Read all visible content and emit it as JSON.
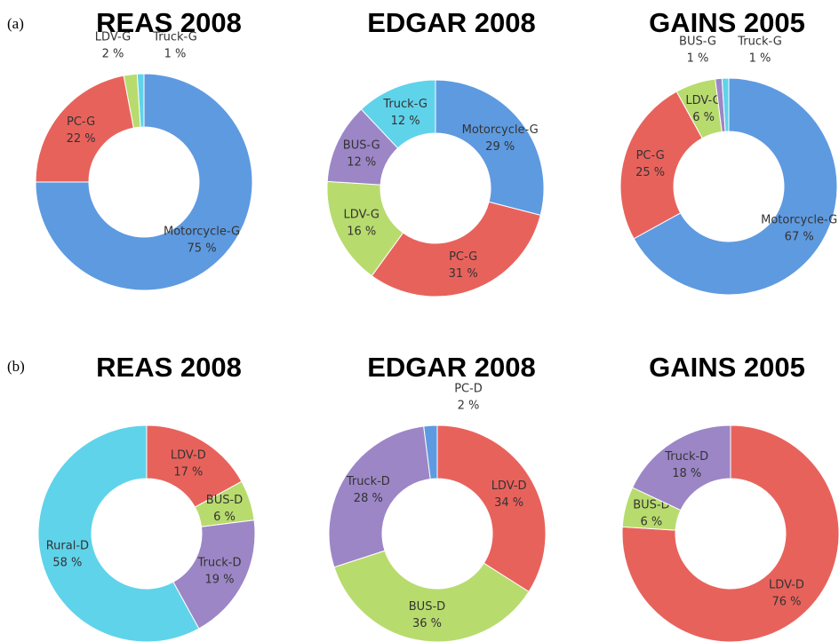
{
  "panel_labels": [
    "(a)",
    "(b)"
  ],
  "chart_data": [
    {
      "type": "pie",
      "title": "REAS 2008",
      "categories": [
        "Motorcycle-G",
        "PC-G",
        "LDV-G",
        "Truck-G"
      ],
      "values": [
        75,
        22,
        2,
        1
      ],
      "value_labels": [
        "75 %",
        "22 %",
        "2 %",
        "1 %"
      ],
      "colors": [
        "#5e9ae0",
        "#e8625c",
        "#b8db6e",
        "#5fd3ea"
      ]
    },
    {
      "type": "pie",
      "title": "EDGAR 2008",
      "categories": [
        "Motorcycle-G",
        "PC-G",
        "LDV-G",
        "BUS-G",
        "Truck-G"
      ],
      "values": [
        29,
        31,
        16,
        12,
        12
      ],
      "value_labels": [
        "29 %",
        "31 %",
        "16 %",
        "12 %",
        "12 %"
      ],
      "colors": [
        "#5e9ae0",
        "#e8625c",
        "#b8db6e",
        "#9c86c6",
        "#5fd3ea"
      ]
    },
    {
      "type": "pie",
      "title": "GAINS 2005",
      "categories": [
        "Motorcycle-G",
        "PC-G",
        "LDV-G",
        "BUS-G",
        "Truck-G"
      ],
      "values": [
        67,
        25,
        6,
        1,
        1
      ],
      "value_labels": [
        "67 %",
        "25 %",
        "6 %",
        "1 %",
        "1 %"
      ],
      "colors": [
        "#5e9ae0",
        "#e8625c",
        "#b8db6e",
        "#9c86c6",
        "#5fd3ea"
      ]
    },
    {
      "type": "pie",
      "title": "REAS 2008",
      "categories": [
        "LDV-D",
        "BUS-D",
        "Truck-D",
        "Rural-D"
      ],
      "values": [
        17,
        6,
        19,
        58
      ],
      "value_labels": [
        "17 %",
        "6 %",
        "19 %",
        "58 %"
      ],
      "colors": [
        "#e8625c",
        "#b8db6e",
        "#9c86c6",
        "#5fd3ea"
      ]
    },
    {
      "type": "pie",
      "title": "EDGAR 2008",
      "categories": [
        "LDV-D",
        "BUS-D",
        "Truck-D",
        "PC-D"
      ],
      "values": [
        34,
        36,
        28,
        2
      ],
      "value_labels": [
        "34 %",
        "36 %",
        "28 %",
        "2 %"
      ],
      "colors": [
        "#e8625c",
        "#b8db6e",
        "#9c86c6",
        "#5e9ae0"
      ]
    },
    {
      "type": "pie",
      "title": "GAINS 2005",
      "categories": [
        "LDV-D",
        "BUS-D",
        "Truck-D"
      ],
      "values": [
        76,
        6,
        18
      ],
      "value_labels": [
        "76 %",
        "6 %",
        "18 %"
      ],
      "colors": [
        "#e8625c",
        "#b8db6e",
        "#9c86c6"
      ]
    }
  ]
}
